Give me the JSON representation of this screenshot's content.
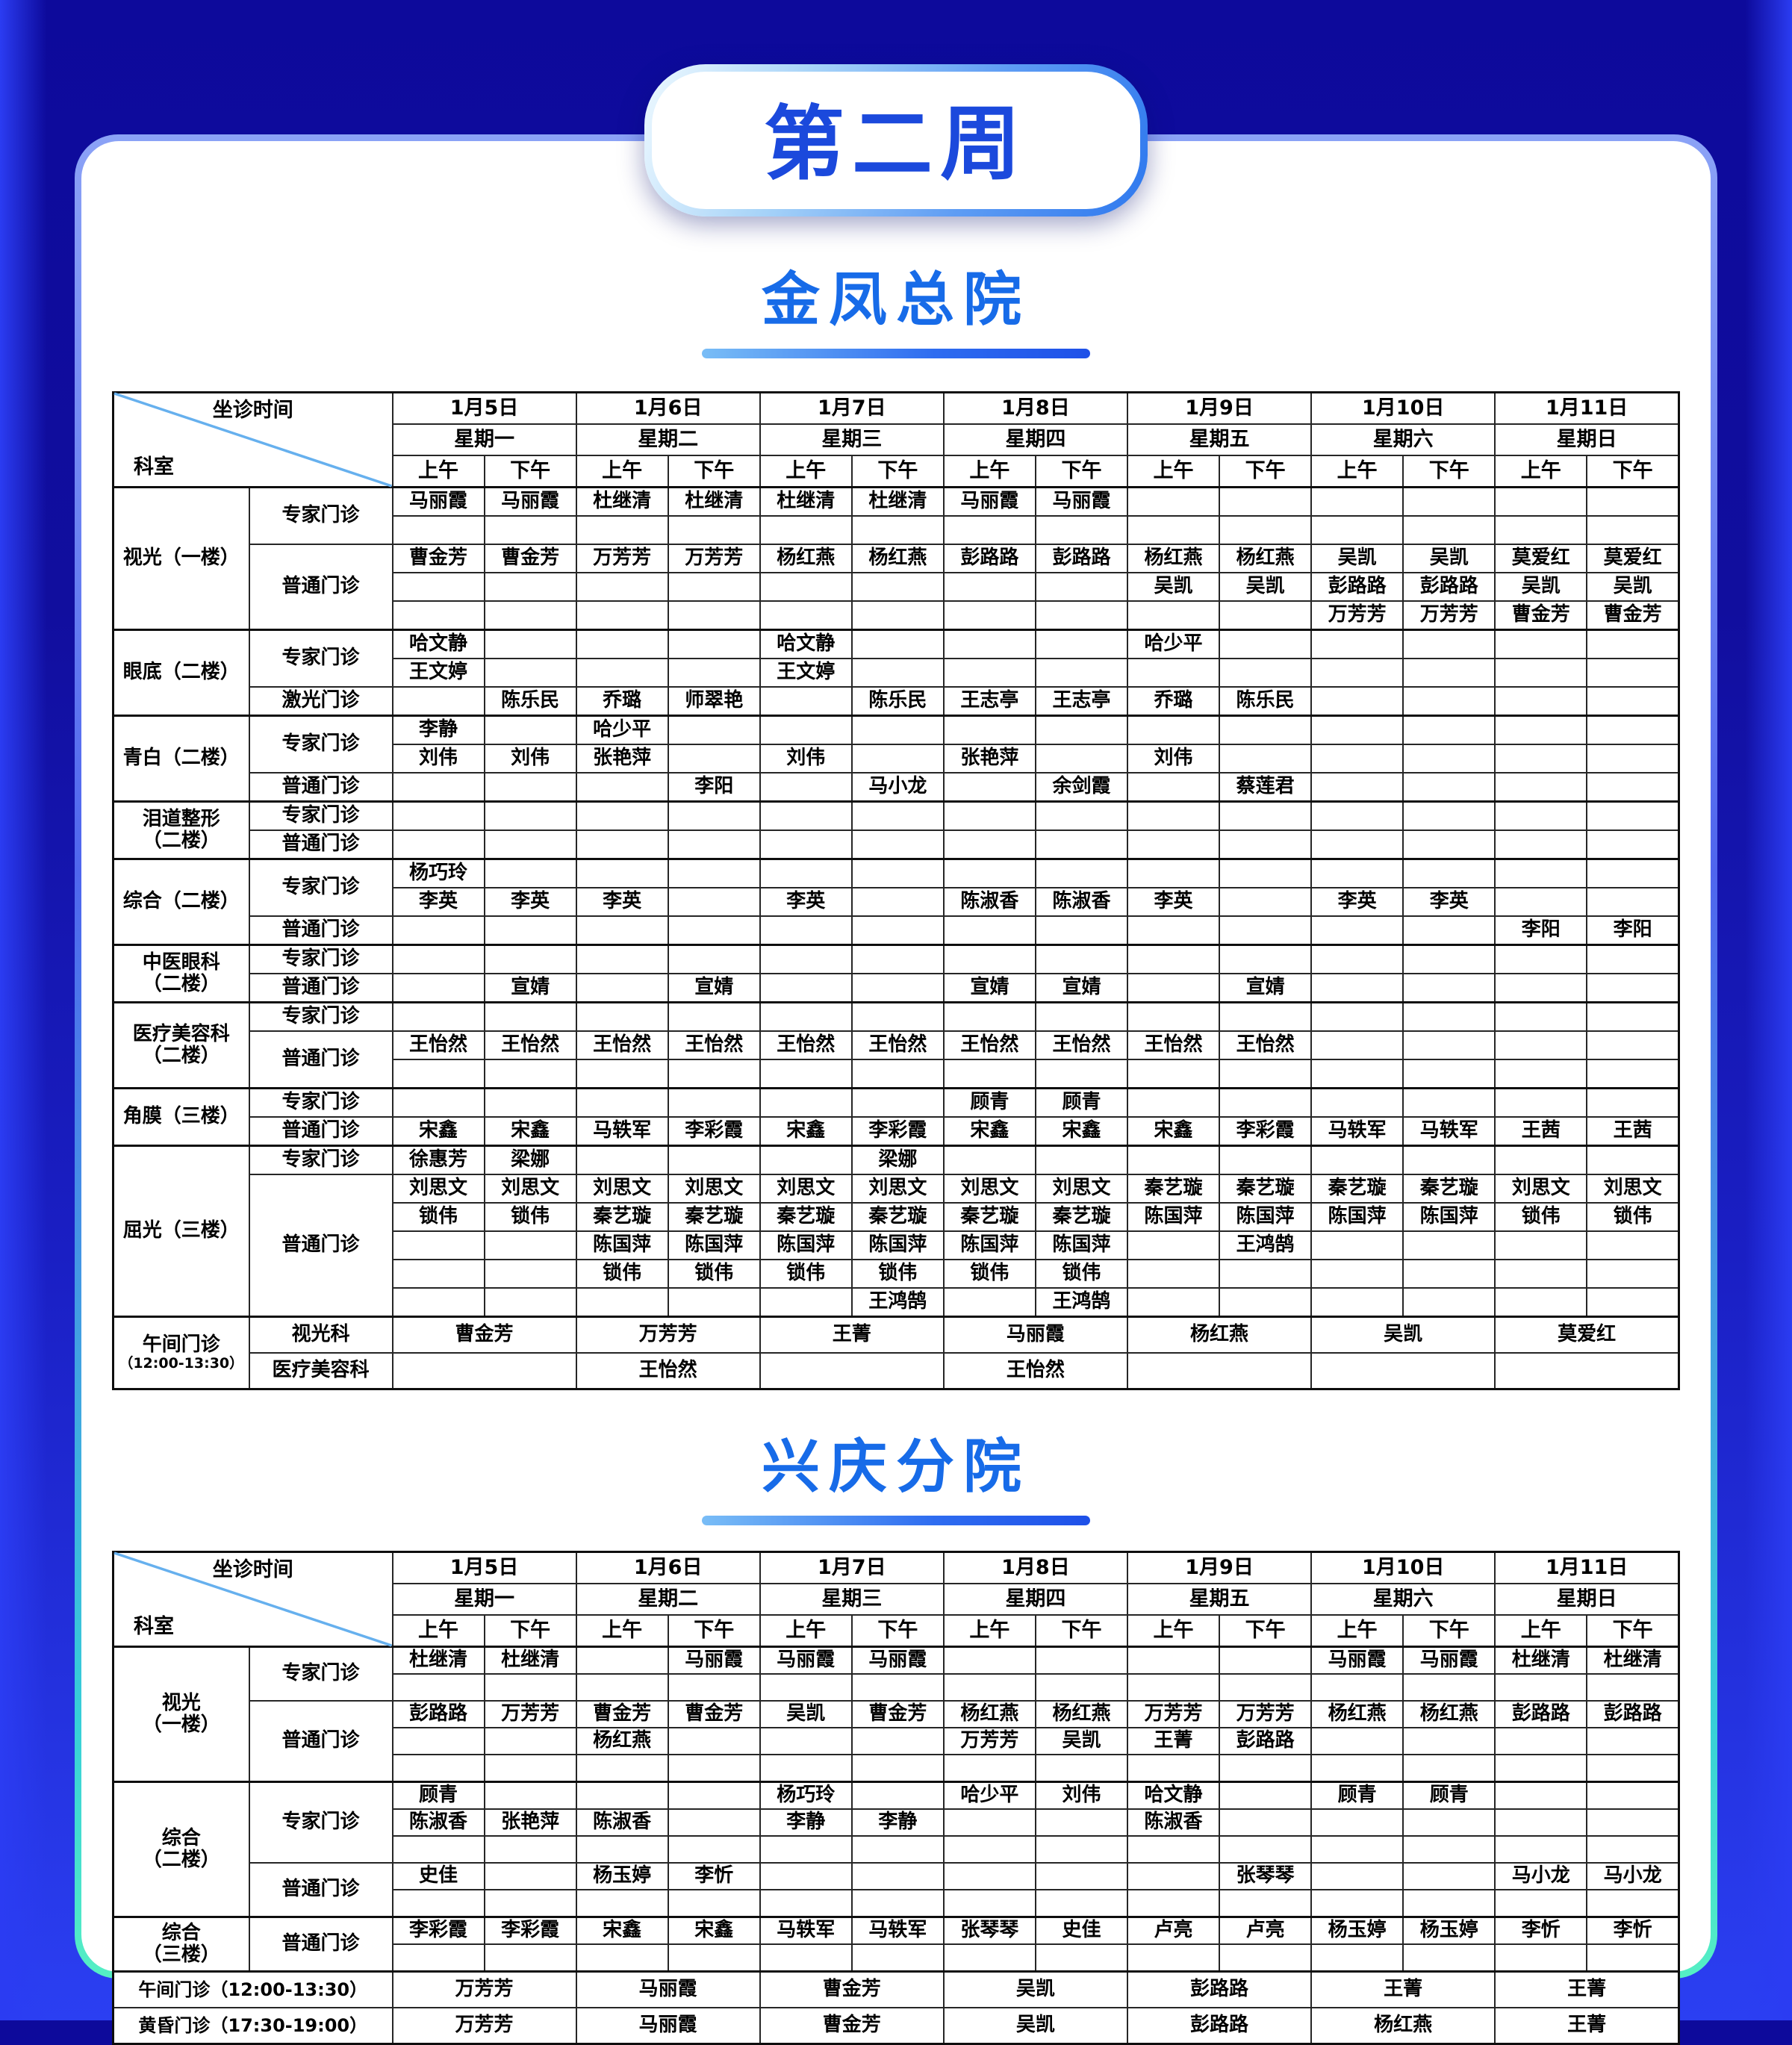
{
  "week_title": "第二周",
  "colors": {
    "background_top": "#0d0a9b",
    "background_bottom": "#2b3ff2",
    "card_glow_teal": "#55efc4",
    "title_blue": "#1b49dc",
    "section_title_blue": "#176be8",
    "underline_blue": "#2e6cf0",
    "diagonal_line_blue": "#66b0ee",
    "table_border": "#0e0e0e"
  },
  "header": {
    "corner_top": "坐诊时间",
    "corner_bottom": "科室",
    "am": "上午",
    "pm": "下午",
    "days": [
      {
        "date": "1月5日",
        "weekday": "星期一"
      },
      {
        "date": "1月6日",
        "weekday": "星期二"
      },
      {
        "date": "1月7日",
        "weekday": "星期三"
      },
      {
        "date": "1月8日",
        "weekday": "星期四"
      },
      {
        "date": "1月9日",
        "weekday": "星期五"
      },
      {
        "date": "1月10日",
        "weekday": "星期六"
      },
      {
        "date": "1月11日",
        "weekday": "星期日"
      }
    ]
  },
  "hospitals": [
    {
      "name": "金凤总院",
      "groups": [
        {
          "dept": "视光（一楼）",
          "sections": [
            {
              "type": "专家门诊",
              "rows": [
                [
                  "马丽霞",
                  "马丽霞",
                  "杜继清",
                  "杜继清",
                  "杜继清",
                  "杜继清",
                  "马丽霞",
                  "马丽霞",
                  "",
                  "",
                  "",
                  "",
                  "",
                  ""
                ],
                []
              ]
            },
            {
              "type": "普通门诊",
              "rows": [
                [
                  "曹金芳",
                  "曹金芳",
                  "万芳芳",
                  "万芳芳",
                  "杨红燕",
                  "杨红燕",
                  "彭路路",
                  "彭路路",
                  "杨红燕",
                  "杨红燕",
                  "吴凯",
                  "吴凯",
                  "莫爱红",
                  "莫爱红"
                ],
                [
                  "",
                  "",
                  "",
                  "",
                  "",
                  "",
                  "",
                  "",
                  "吴凯",
                  "吴凯",
                  "彭路路",
                  "彭路路",
                  "吴凯",
                  "吴凯"
                ],
                [
                  "",
                  "",
                  "",
                  "",
                  "",
                  "",
                  "",
                  "",
                  "",
                  "",
                  "万芳芳",
                  "万芳芳",
                  "曹金芳",
                  "曹金芳"
                ]
              ]
            }
          ]
        },
        {
          "dept": "眼底（二楼）",
          "sections": [
            {
              "type": "专家门诊",
              "rows": [
                [
                  "哈文静",
                  "",
                  "",
                  "",
                  "哈文静",
                  "",
                  "",
                  "",
                  "哈少平",
                  "",
                  "",
                  "",
                  "",
                  ""
                ],
                [
                  "王文婷",
                  "",
                  "",
                  "",
                  "王文婷",
                  "",
                  "",
                  "",
                  "",
                  "",
                  "",
                  "",
                  "",
                  ""
                ]
              ]
            },
            {
              "type": "激光门诊",
              "rows": [
                [
                  "",
                  "陈乐民",
                  "乔璐",
                  "师翠艳",
                  "",
                  "陈乐民",
                  "王志亭",
                  "王志亭",
                  "乔璐",
                  "陈乐民",
                  "",
                  "",
                  "",
                  ""
                ]
              ]
            }
          ]
        },
        {
          "dept": "青白（二楼）",
          "sections": [
            {
              "type": "专家门诊",
              "rows": [
                [
                  "李静",
                  "",
                  "哈少平",
                  "",
                  "",
                  "",
                  "",
                  "",
                  "",
                  "",
                  "",
                  "",
                  "",
                  ""
                ],
                [
                  "刘伟",
                  "刘伟",
                  "张艳萍",
                  "",
                  "刘伟",
                  "",
                  "张艳萍",
                  "",
                  "刘伟",
                  "",
                  "",
                  "",
                  "",
                  ""
                ]
              ]
            },
            {
              "type": "普通门诊",
              "rows": [
                [
                  "",
                  "",
                  "",
                  "李阳",
                  "",
                  "马小龙",
                  "",
                  "余剑霞",
                  "",
                  "蔡莲君",
                  "",
                  "",
                  "",
                  ""
                ]
              ]
            }
          ]
        },
        {
          "dept": "泪道整形\n（二楼）",
          "sections": [
            {
              "type": "专家门诊",
              "rows": [
                []
              ]
            },
            {
              "type": "普通门诊",
              "rows": [
                []
              ]
            }
          ]
        },
        {
          "dept": "综合（二楼）",
          "sections": [
            {
              "type": "专家门诊",
              "rows": [
                [
                  "杨巧玲",
                  "",
                  "",
                  "",
                  "",
                  "",
                  "",
                  "",
                  "",
                  "",
                  "",
                  "",
                  "",
                  ""
                ],
                [
                  "李英",
                  "李英",
                  "李英",
                  "",
                  "李英",
                  "",
                  "陈淑香",
                  "陈淑香",
                  "李英",
                  "",
                  "李英",
                  "李英",
                  "",
                  ""
                ]
              ]
            },
            {
              "type": "普通门诊",
              "rows": [
                [
                  "",
                  "",
                  "",
                  "",
                  "",
                  "",
                  "",
                  "",
                  "",
                  "",
                  "",
                  "",
                  "李阳",
                  "李阳"
                ]
              ]
            }
          ]
        },
        {
          "dept": "中医眼科\n（二楼）",
          "sections": [
            {
              "type": "专家门诊",
              "rows": [
                []
              ]
            },
            {
              "type": "普通门诊",
              "rows": [
                [
                  "",
                  "宣婧",
                  "",
                  "宣婧",
                  "",
                  "",
                  "宣婧",
                  "宣婧",
                  "",
                  "宣婧",
                  "",
                  "",
                  "",
                  ""
                ]
              ]
            }
          ]
        },
        {
          "dept": "医疗美容科\n（二楼）",
          "sections": [
            {
              "type": "专家门诊",
              "rows": [
                []
              ]
            },
            {
              "type": "普通门诊",
              "rows": [
                [
                  "王怡然",
                  "王怡然",
                  "王怡然",
                  "王怡然",
                  "王怡然",
                  "王怡然",
                  "王怡然",
                  "王怡然",
                  "王怡然",
                  "王怡然",
                  "",
                  "",
                  "",
                  ""
                ],
                []
              ]
            }
          ]
        },
        {
          "dept": "角膜（三楼）",
          "sections": [
            {
              "type": "专家门诊",
              "rows": [
                [
                  "",
                  "",
                  "",
                  "",
                  "",
                  "",
                  "顾青",
                  "顾青",
                  "",
                  "",
                  "",
                  "",
                  "",
                  ""
                ]
              ]
            },
            {
              "type": "普通门诊",
              "rows": [
                [
                  "宋鑫",
                  "宋鑫",
                  "马轶军",
                  "李彩霞",
                  "宋鑫",
                  "李彩霞",
                  "宋鑫",
                  "宋鑫",
                  "宋鑫",
                  "李彩霞",
                  "马轶军",
                  "马轶军",
                  "王茜",
                  "王茜"
                ]
              ]
            }
          ]
        },
        {
          "dept": "屈光（三楼）",
          "sections": [
            {
              "type": "专家门诊",
              "rows": [
                [
                  "徐惠芳",
                  "梁娜",
                  "",
                  "",
                  "",
                  "梁娜",
                  "",
                  "",
                  "",
                  "",
                  "",
                  "",
                  "",
                  ""
                ]
              ]
            },
            {
              "type": "普通门诊",
              "rows": [
                [
                  "刘思文",
                  "刘思文",
                  "刘思文",
                  "刘思文",
                  "刘思文",
                  "刘思文",
                  "刘思文",
                  "刘思文",
                  "秦艺璇",
                  "秦艺璇",
                  "秦艺璇",
                  "秦艺璇",
                  "刘思文",
                  "刘思文"
                ],
                [
                  "锁伟",
                  "锁伟",
                  "秦艺璇",
                  "秦艺璇",
                  "秦艺璇",
                  "秦艺璇",
                  "秦艺璇",
                  "秦艺璇",
                  "陈国萍",
                  "陈国萍",
                  "陈国萍",
                  "陈国萍",
                  "锁伟",
                  "锁伟"
                ],
                [
                  "",
                  "",
                  "陈国萍",
                  "陈国萍",
                  "陈国萍",
                  "陈国萍",
                  "陈国萍",
                  "陈国萍",
                  "",
                  "王鸿鹄",
                  "",
                  "",
                  "",
                  ""
                ],
                [
                  "",
                  "",
                  "锁伟",
                  "锁伟",
                  "锁伟",
                  "锁伟",
                  "锁伟",
                  "锁伟",
                  "",
                  "",
                  "",
                  "",
                  "",
                  ""
                ],
                [
                  "",
                  "",
                  "",
                  "",
                  "",
                  "王鸿鹄",
                  "",
                  "王鸿鹄",
                  "",
                  "",
                  "",
                  "",
                  "",
                  ""
                ]
              ]
            }
          ]
        }
      ],
      "lunch": {
        "label": "午间门诊",
        "sublabel": "（12:00-13:30）",
        "rows": [
          {
            "dept": "视光科",
            "cells": [
              "曹金芳",
              "万芳芳",
              "王菁",
              "马丽霞",
              "杨红燕",
              "吴凯",
              "莫爱红"
            ]
          },
          {
            "dept": "医疗美容科",
            "cells": [
              "",
              "王怡然",
              "",
              "王怡然",
              "",
              "",
              ""
            ]
          }
        ]
      }
    },
    {
      "name": "兴庆分院",
      "groups": [
        {
          "dept": "视光\n（一楼）",
          "sections": [
            {
              "type": "专家门诊",
              "rows": [
                [
                  "杜继清",
                  "杜继清",
                  "",
                  "马丽霞",
                  "马丽霞",
                  "马丽霞",
                  "",
                  "",
                  "",
                  "",
                  "马丽霞",
                  "马丽霞",
                  "杜继清",
                  "杜继清"
                ],
                []
              ]
            },
            {
              "type": "普通门诊",
              "rows": [
                [
                  "彭路路",
                  "万芳芳",
                  "曹金芳",
                  "曹金芳",
                  "吴凯",
                  "曹金芳",
                  "杨红燕",
                  "杨红燕",
                  "万芳芳",
                  "万芳芳",
                  "杨红燕",
                  "杨红燕",
                  "彭路路",
                  "彭路路"
                ],
                [
                  "",
                  "",
                  "杨红燕",
                  "",
                  "",
                  "",
                  "万芳芳",
                  "吴凯",
                  "王菁",
                  "彭路路",
                  "",
                  "",
                  "",
                  ""
                ],
                []
              ]
            }
          ]
        },
        {
          "dept": "综合\n（二楼）",
          "sections": [
            {
              "type": "专家门诊",
              "rows": [
                [
                  "顾青",
                  "",
                  "",
                  "",
                  "杨巧玲",
                  "",
                  "哈少平",
                  "刘伟",
                  "哈文静",
                  "",
                  "顾青",
                  "顾青",
                  "",
                  ""
                ],
                [
                  "陈淑香",
                  "张艳萍",
                  "陈淑香",
                  "",
                  "李静",
                  "李静",
                  "",
                  "",
                  "陈淑香",
                  "",
                  "",
                  "",
                  "",
                  ""
                ],
                []
              ]
            },
            {
              "type": "普通门诊",
              "rows": [
                [
                  "史佳",
                  "",
                  "杨玉婷",
                  "李忻",
                  "",
                  "",
                  "",
                  "",
                  "",
                  "张琴琴",
                  "",
                  "",
                  "马小龙",
                  "马小龙"
                ],
                []
              ]
            }
          ]
        },
        {
          "dept": "综合\n（三楼）",
          "sections": [
            {
              "type": "普通门诊",
              "rows": [
                [
                  "李彩霞",
                  "李彩霞",
                  "宋鑫",
                  "宋鑫",
                  "马轶军",
                  "马轶军",
                  "张琴琴",
                  "史佳",
                  "卢亮",
                  "卢亮",
                  "杨玉婷",
                  "杨玉婷",
                  "李忻",
                  "李忻"
                ],
                []
              ]
            }
          ]
        }
      ],
      "wide_rows": [
        {
          "label": "午间门诊（12:00-13:30）",
          "cells": [
            "万芳芳",
            "马丽霞",
            "曹金芳",
            "吴凯",
            "彭路路",
            "王菁",
            "王菁"
          ]
        },
        {
          "label": "黄昏门诊（17:30-19:00）",
          "cells": [
            "万芳芳",
            "马丽霞",
            "曹金芳",
            "吴凯",
            "彭路路",
            "杨红燕",
            "王菁"
          ]
        }
      ]
    }
  ]
}
